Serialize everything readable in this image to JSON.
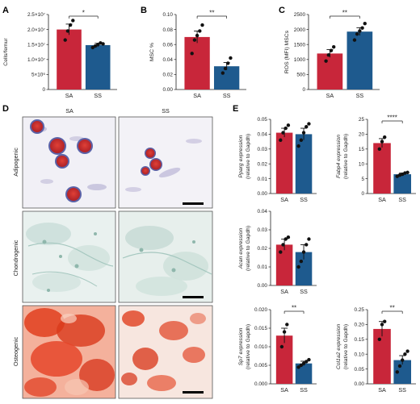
{
  "colors": {
    "SA": "#c8263a",
    "SS": "#1e5a8e"
  },
  "panel_labels": {
    "A": "A",
    "B": "B",
    "C": "C",
    "D": "D",
    "E": "E"
  },
  "images": {
    "columns": [
      "SA",
      "SS"
    ],
    "rows": [
      "Adipogenic",
      "Chondrogenic",
      "Osteogenic"
    ]
  },
  "chart_data": [
    {
      "id": "A",
      "type": "bar",
      "ylabel": "Cells/femur",
      "yticks": [
        "0",
        "5×10⁶",
        "1.0×10⁷",
        "1.5×10⁷",
        "2.0×10⁷",
        "2.5×10⁷"
      ],
      "yvals": [
        0,
        5000000,
        10000000,
        15000000,
        20000000,
        25000000
      ],
      "ylim": [
        0,
        25000000
      ],
      "categories": [
        "SA",
        "SS"
      ],
      "values": [
        20000000,
        14800000
      ],
      "errors": [
        1800000,
        600000
      ],
      "points": [
        [
          16500000,
          19500000,
          21500000,
          23000000
        ],
        [
          14000000,
          14500000,
          15000000,
          15500000,
          15200000
        ]
      ],
      "significance": "*"
    },
    {
      "id": "B",
      "type": "bar",
      "ylabel": "MSC %",
      "yticks": [
        "0.00",
        "0.02",
        "0.04",
        "0.06",
        "0.08",
        "0.10"
      ],
      "yvals": [
        0,
        0.02,
        0.04,
        0.06,
        0.08,
        0.1
      ],
      "ylim": [
        0,
        0.1
      ],
      "categories": [
        "SA",
        "SS"
      ],
      "values": [
        0.07,
        0.031
      ],
      "errors": [
        0.008,
        0.005
      ],
      "points": [
        [
          0.048,
          0.066,
          0.072,
          0.078,
          0.086
        ],
        [
          0.022,
          0.028,
          0.035,
          0.042
        ]
      ],
      "significance": "**"
    },
    {
      "id": "C",
      "type": "bar",
      "ylabel": "ROS (MFI) MSCs",
      "yticks": [
        "0",
        "500",
        "1000",
        "1500",
        "2000",
        "2500"
      ],
      "yvals": [
        0,
        500,
        1000,
        1500,
        2000,
        2500
      ],
      "ylim": [
        0,
        2500
      ],
      "categories": [
        "SA",
        "SS"
      ],
      "values": [
        1200,
        1930
      ],
      "errors": [
        130,
        130
      ],
      "points": [
        [
          950,
          1150,
          1300,
          1420
        ],
        [
          1650,
          1850,
          1950,
          2050,
          2200
        ]
      ],
      "significance": "**"
    },
    {
      "id": "E1",
      "type": "bar",
      "ylabel": "Pparg expression",
      "ylabel2": "(relative to Gapdh)",
      "yticks": [
        "0.00",
        "0.01",
        "0.02",
        "0.03",
        "0.04",
        "0.05"
      ],
      "yvals": [
        0,
        0.01,
        0.02,
        0.03,
        0.04,
        0.05
      ],
      "ylim": [
        0,
        0.05
      ],
      "categories": [
        "SA",
        "SS"
      ],
      "values": [
        0.041,
        0.04
      ],
      "errors": [
        0.003,
        0.004
      ],
      "points": [
        [
          0.036,
          0.041,
          0.044,
          0.046
        ],
        [
          0.032,
          0.036,
          0.041,
          0.045,
          0.047
        ]
      ],
      "significance": ""
    },
    {
      "id": "E2",
      "type": "bar",
      "ylabel": "Fabp4 expression",
      "ylabel2": "(relative to Gapdh)",
      "yticks": [
        "0",
        "5",
        "10",
        "15",
        "20",
        "25"
      ],
      "yvals": [
        0,
        5,
        10,
        15,
        20,
        25
      ],
      "ylim": [
        0,
        25
      ],
      "categories": [
        "SA",
        "SS"
      ],
      "values": [
        17,
        6.5
      ],
      "errors": [
        1.5,
        0.4
      ],
      "points": [
        [
          15,
          17.5,
          19
        ],
        [
          5.8,
          6.2,
          6.5,
          6.9,
          7.1
        ]
      ],
      "significance": "****"
    },
    {
      "id": "E3",
      "type": "bar",
      "ylabel": "Acan expression",
      "ylabel2": "(relative to Gapdh)",
      "yticks": [
        "0.00",
        "0.01",
        "0.02",
        "0.03",
        "0.04"
      ],
      "yvals": [
        0,
        0.01,
        0.02,
        0.03,
        0.04
      ],
      "ylim": [
        0,
        0.04
      ],
      "categories": [
        "SA",
        "SS"
      ],
      "values": [
        0.022,
        0.018
      ],
      "errors": [
        0.003,
        0.004
      ],
      "points": [
        [
          0.018,
          0.022,
          0.025,
          0.026
        ],
        [
          0.01,
          0.013,
          0.018,
          0.022,
          0.025
        ]
      ],
      "significance": ""
    },
    {
      "id": "E4",
      "type": "bar",
      "ylabel": "Sp7 expression",
      "ylabel2": "(relative to Gapdh)",
      "yticks": [
        "0.000",
        "0.005",
        "0.010",
        "0.015",
        "0.020"
      ],
      "yvals": [
        0,
        0.005,
        0.01,
        0.015,
        0.02
      ],
      "ylim": [
        0,
        0.02
      ],
      "categories": [
        "SA",
        "SS"
      ],
      "values": [
        0.013,
        0.0055
      ],
      "errors": [
        0.002,
        0.0006
      ],
      "points": [
        [
          0.01,
          0.014,
          0.016
        ],
        [
          0.0045,
          0.005,
          0.0055,
          0.006,
          0.0065
        ]
      ],
      "significance": "**"
    },
    {
      "id": "E5",
      "type": "bar",
      "ylabel": "Col1a2 expression",
      "ylabel2": "(relative to Gapdh)",
      "yticks": [
        "0.00",
        "0.05",
        "0.10",
        "0.15",
        "0.20",
        "0.25"
      ],
      "yvals": [
        0,
        0.05,
        0.1,
        0.15,
        0.2,
        0.25
      ],
      "ylim": [
        0,
        0.25
      ],
      "categories": [
        "SA",
        "SS"
      ],
      "values": [
        0.185,
        0.08
      ],
      "errors": [
        0.025,
        0.015
      ],
      "points": [
        [
          0.15,
          0.2,
          0.21
        ],
        [
          0.04,
          0.06,
          0.08,
          0.1,
          0.11
        ]
      ],
      "significance": "**"
    }
  ]
}
